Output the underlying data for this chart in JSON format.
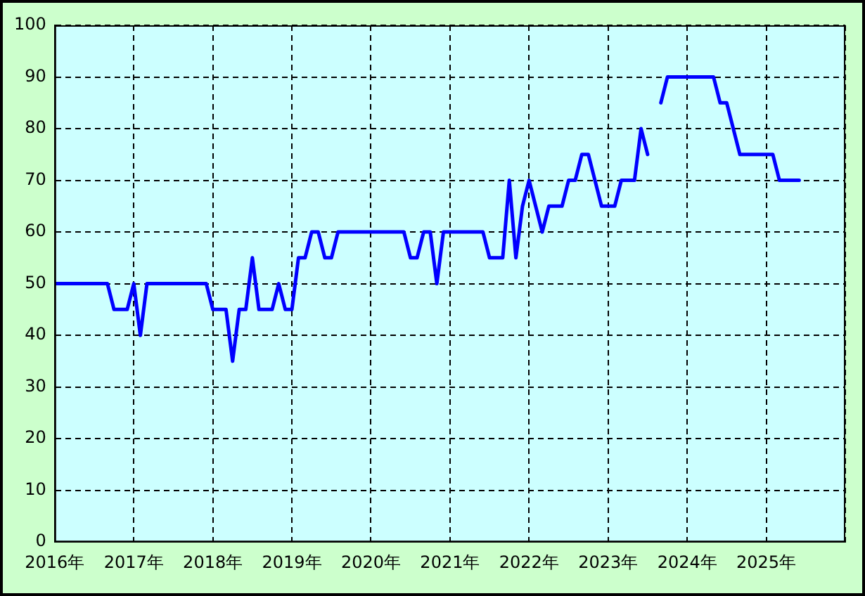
{
  "chart_data": {
    "type": "line",
    "x": [
      "2016-01",
      "2016-02",
      "2016-03",
      "2016-04",
      "2016-05",
      "2016-06",
      "2016-07",
      "2016-08",
      "2016-09",
      "2016-10",
      "2016-11",
      "2016-12",
      "2017-01",
      "2017-02",
      "2017-03",
      "2017-04",
      "2017-05",
      "2017-06",
      "2017-07",
      "2017-08",
      "2017-09",
      "2017-10",
      "2017-11",
      "2017-12",
      "2018-01",
      "2018-02",
      "2018-03",
      "2018-04",
      "2018-05",
      "2018-06",
      "2018-07",
      "2018-08",
      "2018-09",
      "2018-10",
      "2018-11",
      "2018-12",
      "2019-01",
      "2019-02",
      "2019-03",
      "2019-04",
      "2019-05",
      "2019-06",
      "2019-07",
      "2019-08",
      "2019-09",
      "2019-10",
      "2019-11",
      "2019-12",
      "2020-01",
      "2020-02",
      "2020-03",
      "2020-04",
      "2020-05",
      "2020-06",
      "2020-07",
      "2020-08",
      "2020-09",
      "2020-10",
      "2020-11",
      "2020-12",
      "2021-01",
      "2021-02",
      "2021-03",
      "2021-04",
      "2021-05",
      "2021-06",
      "2021-07",
      "2021-08",
      "2021-09",
      "2021-10",
      "2021-11",
      "2021-12",
      "2022-01",
      "2022-02",
      "2022-03",
      "2022-04",
      "2022-05",
      "2022-06",
      "2022-07",
      "2022-08",
      "2022-09",
      "2022-10",
      "2022-11",
      "2022-12",
      "2023-01",
      "2023-02",
      "2023-03",
      "2023-04",
      "2023-05",
      "2023-06",
      "2023-07",
      "2023-08",
      "2023-09",
      "2023-10",
      "2023-11",
      "2023-12",
      "2024-01",
      "2024-02",
      "2024-03",
      "2024-04",
      "2024-05",
      "2024-06",
      "2024-07",
      "2024-08",
      "2024-09",
      "2024-10",
      "2024-11",
      "2024-12",
      "2025-01",
      "2025-02",
      "2025-03",
      "2025-04",
      "2025-05",
      "2025-06"
    ],
    "series": [
      {
        "color": "#0000ff",
        "values": [
          50,
          50,
          50,
          50,
          50,
          50,
          50,
          50,
          50,
          45,
          45,
          45,
          50,
          40,
          50,
          50,
          50,
          50,
          50,
          50,
          50,
          50,
          50,
          50,
          45,
          45,
          45,
          35,
          45,
          45,
          55,
          45,
          45,
          45,
          50,
          45,
          45,
          55,
          55,
          60,
          60,
          55,
          55,
          60,
          60,
          60,
          60,
          60,
          60,
          60,
          60,
          60,
          60,
          60,
          55,
          55,
          60,
          60,
          50,
          60,
          60,
          60,
          60,
          60,
          60,
          60,
          55,
          55,
          55,
          70,
          55,
          65,
          70,
          65,
          60,
          65,
          65,
          65,
          70,
          70,
          75,
          75,
          70,
          65,
          65,
          65,
          70,
          70,
          70,
          80,
          75,
          null,
          85,
          90,
          90,
          90,
          90,
          90,
          90,
          90,
          90,
          85,
          85,
          80,
          75,
          75,
          75,
          75,
          75,
          75,
          70,
          70,
          70,
          70
        ]
      }
    ],
    "xlim": [
      "2016-01",
      "2026-01"
    ],
    "xticks": [
      {
        "value": "2016-01",
        "label": "2016年"
      },
      {
        "value": "2017-01",
        "label": "2017年"
      },
      {
        "value": "2018-01",
        "label": "2018年"
      },
      {
        "value": "2019-01",
        "label": "2019年"
      },
      {
        "value": "2020-01",
        "label": "2020年"
      },
      {
        "value": "2021-01",
        "label": "2021年"
      },
      {
        "value": "2022-01",
        "label": "2022年"
      },
      {
        "value": "2023-01",
        "label": "2023年"
      },
      {
        "value": "2024-01",
        "label": "2024年"
      },
      {
        "value": "2025-01",
        "label": "2025年"
      },
      {
        "value": "2026-01",
        "label": null
      }
    ],
    "ylim": [
      0,
      100
    ],
    "yticks": [
      0,
      10,
      20,
      30,
      40,
      50,
      60,
      70,
      80,
      90,
      100
    ],
    "grid": true,
    "legend": false,
    "marker": "none",
    "line_style": "solid"
  }
}
